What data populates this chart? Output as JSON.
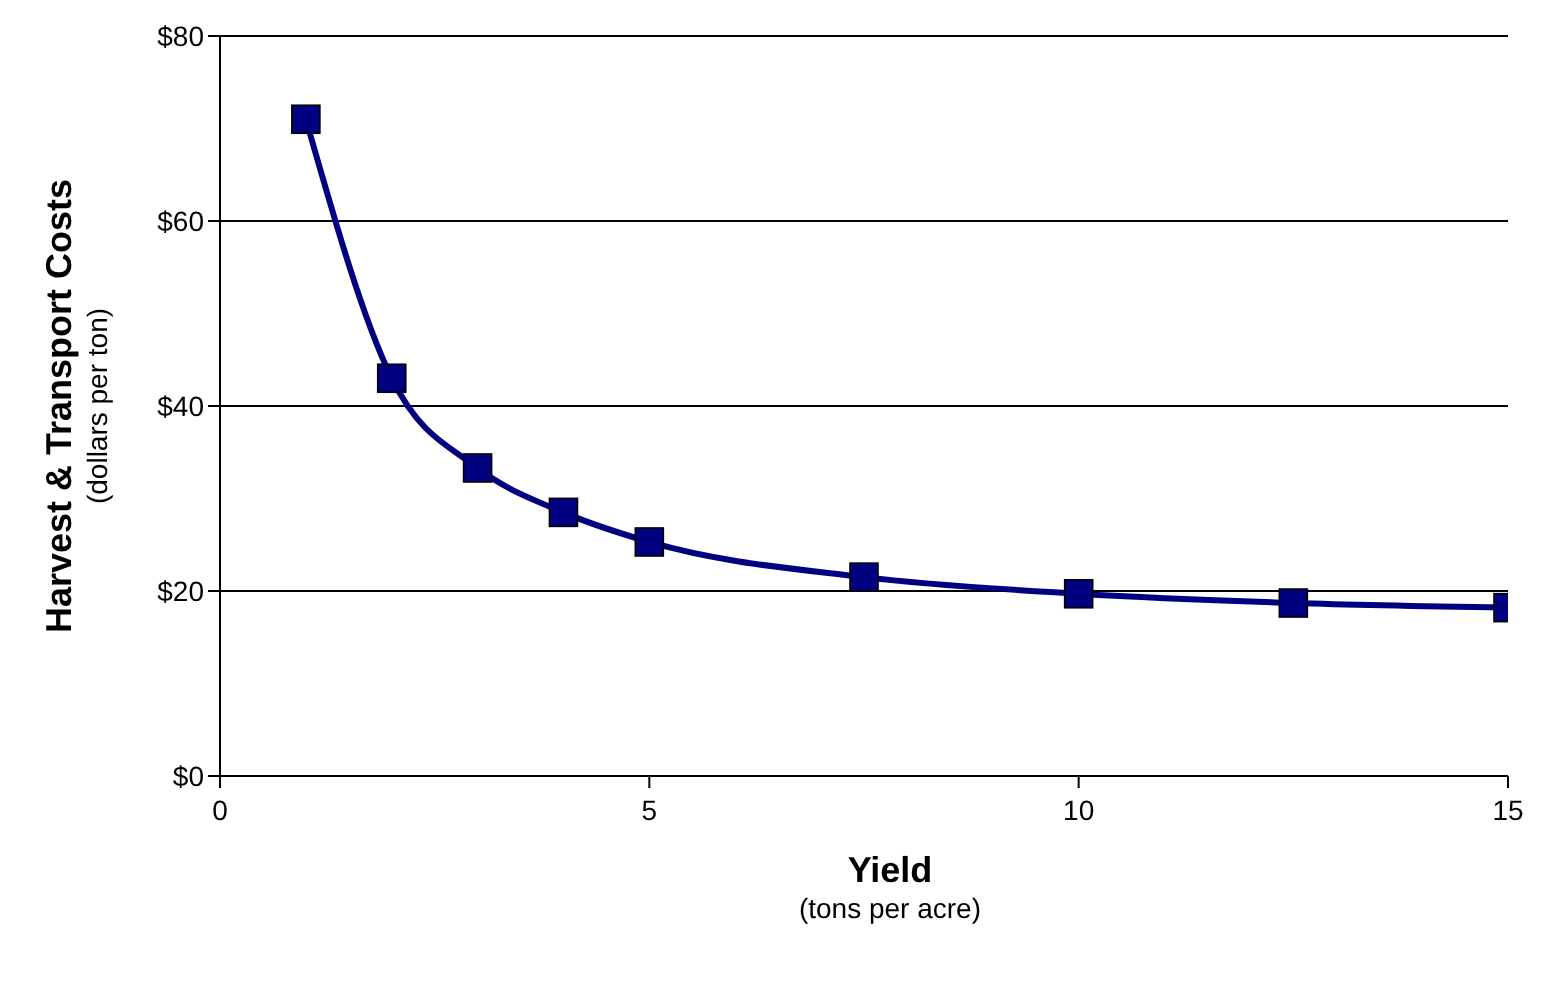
{
  "chart_data": {
    "type": "line",
    "xlabel": "Yield\n(tons per acre)",
    "ylabel": "Harvest & Transport Costs\n(dollars per ton)",
    "x": [
      1,
      2,
      3,
      4,
      5,
      7.5,
      10,
      12.5,
      15
    ],
    "series": [
      {
        "color": "#000080",
        "values": [
          71,
          43,
          33.3,
          28.5,
          25.3,
          21.5,
          19.7,
          18.7,
          18.2
        ]
      }
    ],
    "xlim": [
      0,
      15
    ],
    "xticks": [
      0,
      5,
      10,
      15
    ],
    "ylim": [
      0,
      80
    ],
    "yticks": [
      {
        "value": 0,
        "label": "$0"
      },
      {
        "value": 20,
        "label": "$20"
      },
      {
        "value": 40,
        "label": "$40"
      },
      {
        "value": 60,
        "label": "$60"
      },
      {
        "value": 80,
        "label": "$80"
      }
    ],
    "grid": "y",
    "marker": "square",
    "line_style": "solid"
  }
}
